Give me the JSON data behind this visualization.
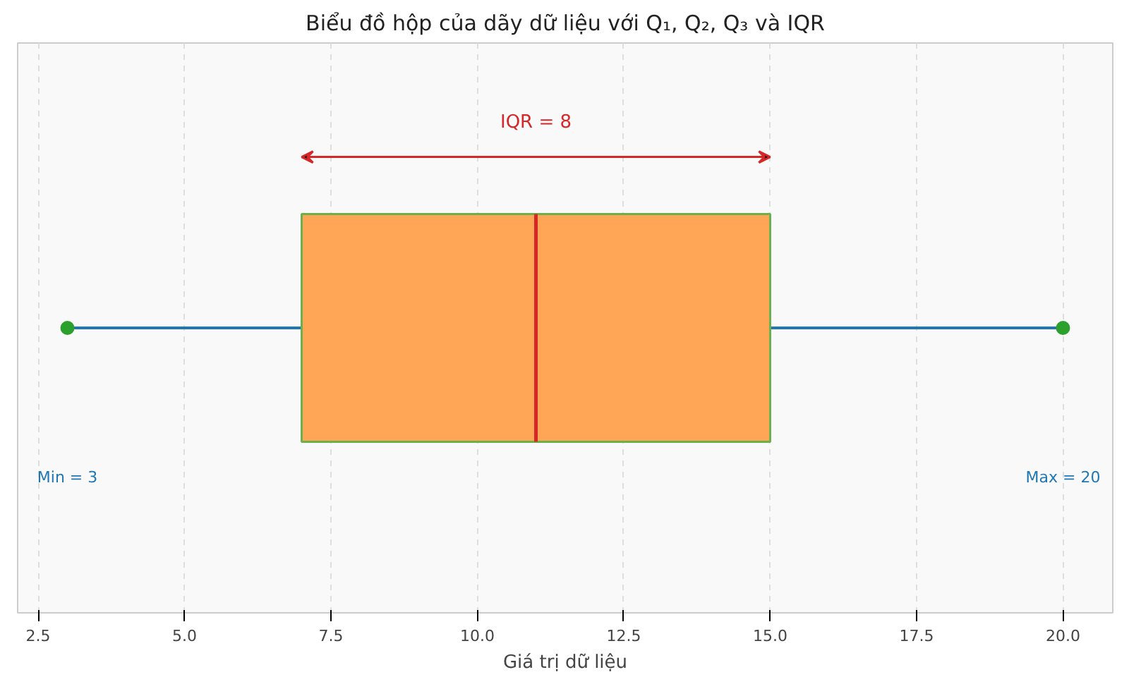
{
  "chart_data": {
    "type": "box",
    "title": "Biểu đồ hộp của dãy dữ liệu với Q₁, Q₂, Q₃ và IQR",
    "xlabel": "Giá trị dữ liệu",
    "orientation": "horizontal",
    "categories": [
      null
    ],
    "color": "#ffa556",
    "boxes": [
      {
        "low": 3,
        "q1": 7,
        "median": 11,
        "q3": 15,
        "high": 20
      }
    ],
    "xlim": [
      2.15,
      20.85
    ],
    "xticks": [
      {
        "value": 2.5,
        "label": "2.5"
      },
      {
        "value": 5,
        "label": "5.0"
      },
      {
        "value": 7.5,
        "label": "7.5"
      },
      {
        "value": 10,
        "label": "10.0"
      },
      {
        "value": 12.5,
        "label": "12.5"
      },
      {
        "value": 15,
        "label": "15.0"
      },
      {
        "value": 17.5,
        "label": "17.5"
      },
      {
        "value": 20,
        "label": "20.0"
      }
    ],
    "grid": "x",
    "tick_labels": "x",
    "series": [
      {
        "type": "scatter",
        "color": "#2ca02c",
        "values": [
          3
        ]
      },
      {
        "type": "scatter",
        "color": "#2ca02c",
        "values": [
          20
        ]
      }
    ],
    "annotations": [
      "IQR = 8",
      "Min = 3",
      "Max = 20"
    ]
  }
}
